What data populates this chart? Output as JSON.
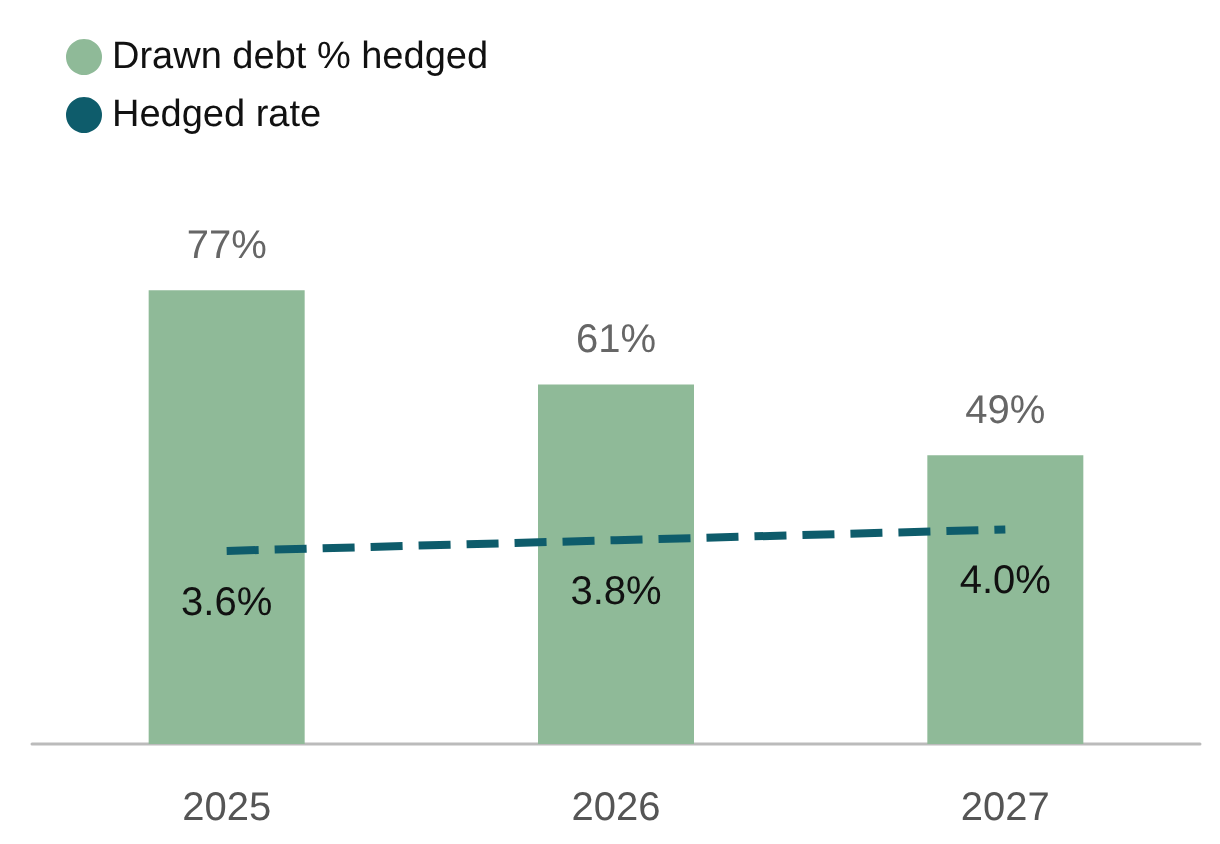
{
  "chart_data": {
    "type": "bar",
    "categories": [
      "2025",
      "2026",
      "2027"
    ],
    "series": [
      {
        "name": "Drawn debt % hedged",
        "color": "#8fba98",
        "values": [
          77,
          61,
          49
        ],
        "value_labels": [
          "77%",
          "61%",
          "49%"
        ]
      },
      {
        "name": "Hedged rate",
        "type": "line",
        "axis": "y2",
        "color": "#0e5c6b",
        "values": [
          3.6,
          3.8,
          4.0
        ],
        "value_labels": [
          "3.6%",
          "3.8%",
          "4.0%"
        ],
        "line_style": "dashed",
        "marker": "none"
      }
    ],
    "legend": "top left"
  }
}
